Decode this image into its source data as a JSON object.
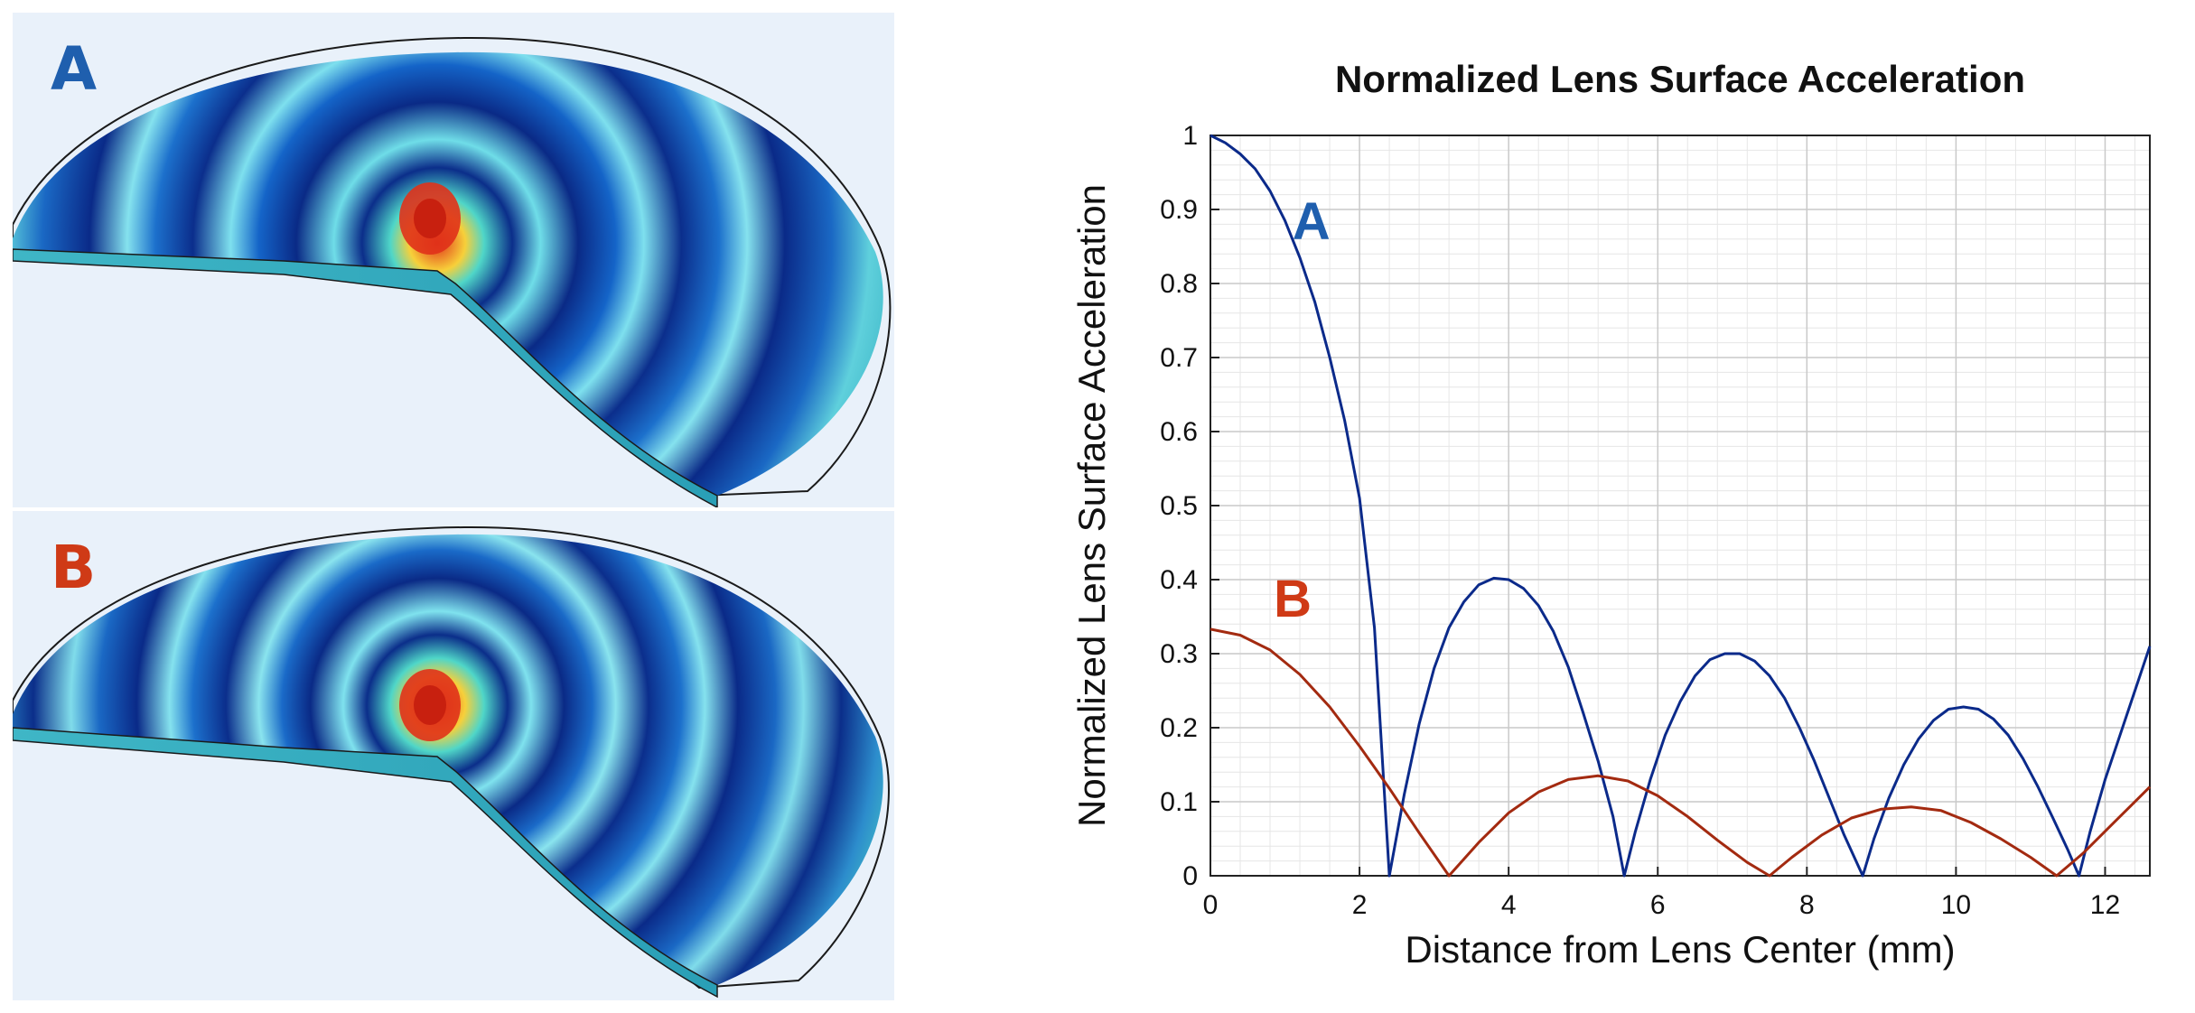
{
  "figure": {
    "panels": [
      {
        "label": "A",
        "label_color": "#1f5fae"
      },
      {
        "label": "B",
        "label_color": "#cf3a16"
      }
    ]
  },
  "chart_data": {
    "type": "line",
    "title": "Normalized Lens Surface Acceleration",
    "xlabel": "Distance from Lens Center (mm)",
    "ylabel": "Normalized Lens Surface Acceleration",
    "xlim": [
      0,
      12.6
    ],
    "ylim": [
      0,
      1
    ],
    "xticks": [
      0,
      2,
      4,
      6,
      8,
      10,
      12
    ],
    "yticks": [
      0,
      0.1,
      0.2,
      0.3,
      0.4,
      0.5,
      0.6,
      0.7,
      0.8,
      0.9,
      1
    ],
    "grid": true,
    "series": [
      {
        "name": "A",
        "color": "#0b2a8a",
        "label_color": "#1f5fae",
        "points": [
          [
            0,
            1.0
          ],
          [
            0.2,
            0.99
          ],
          [
            0.4,
            0.975
          ],
          [
            0.6,
            0.955
          ],
          [
            0.8,
            0.925
          ],
          [
            1.0,
            0.885
          ],
          [
            1.2,
            0.835
          ],
          [
            1.4,
            0.775
          ],
          [
            1.6,
            0.7
          ],
          [
            1.8,
            0.615
          ],
          [
            2.0,
            0.51
          ],
          [
            2.2,
            0.335
          ],
          [
            2.4,
            0.0
          ],
          [
            2.6,
            0.11
          ],
          [
            2.8,
            0.205
          ],
          [
            3.0,
            0.28
          ],
          [
            3.2,
            0.335
          ],
          [
            3.4,
            0.37
          ],
          [
            3.6,
            0.393
          ],
          [
            3.8,
            0.402
          ],
          [
            4.0,
            0.4
          ],
          [
            4.2,
            0.388
          ],
          [
            4.4,
            0.365
          ],
          [
            4.6,
            0.33
          ],
          [
            4.8,
            0.282
          ],
          [
            5.0,
            0.22
          ],
          [
            5.2,
            0.155
          ],
          [
            5.4,
            0.08
          ],
          [
            5.55,
            0.0
          ],
          [
            5.7,
            0.06
          ],
          [
            5.9,
            0.13
          ],
          [
            6.1,
            0.19
          ],
          [
            6.3,
            0.235
          ],
          [
            6.5,
            0.27
          ],
          [
            6.7,
            0.292
          ],
          [
            6.9,
            0.3
          ],
          [
            7.1,
            0.3
          ],
          [
            7.3,
            0.29
          ],
          [
            7.5,
            0.27
          ],
          [
            7.7,
            0.24
          ],
          [
            7.9,
            0.2
          ],
          [
            8.1,
            0.155
          ],
          [
            8.3,
            0.105
          ],
          [
            8.5,
            0.055
          ],
          [
            8.75,
            0.0
          ],
          [
            8.9,
            0.05
          ],
          [
            9.1,
            0.105
          ],
          [
            9.3,
            0.15
          ],
          [
            9.5,
            0.185
          ],
          [
            9.7,
            0.21
          ],
          [
            9.9,
            0.225
          ],
          [
            10.1,
            0.228
          ],
          [
            10.3,
            0.225
          ],
          [
            10.5,
            0.212
          ],
          [
            10.7,
            0.19
          ],
          [
            10.9,
            0.158
          ],
          [
            11.1,
            0.12
          ],
          [
            11.3,
            0.078
          ],
          [
            11.5,
            0.035
          ],
          [
            11.65,
            0.0
          ],
          [
            11.8,
            0.06
          ],
          [
            12.0,
            0.13
          ],
          [
            12.2,
            0.19
          ],
          [
            12.4,
            0.25
          ],
          [
            12.6,
            0.31
          ]
        ]
      },
      {
        "name": "B",
        "color": "#a32a10",
        "label_color": "#cf3a16",
        "points": [
          [
            0,
            0.333
          ],
          [
            0.4,
            0.325
          ],
          [
            0.8,
            0.305
          ],
          [
            1.2,
            0.272
          ],
          [
            1.6,
            0.228
          ],
          [
            2.0,
            0.175
          ],
          [
            2.4,
            0.118
          ],
          [
            2.8,
            0.058
          ],
          [
            3.2,
            0.0
          ],
          [
            3.6,
            0.045
          ],
          [
            4.0,
            0.085
          ],
          [
            4.4,
            0.113
          ],
          [
            4.8,
            0.13
          ],
          [
            5.2,
            0.135
          ],
          [
            5.6,
            0.128
          ],
          [
            6.0,
            0.108
          ],
          [
            6.4,
            0.08
          ],
          [
            6.8,
            0.048
          ],
          [
            7.2,
            0.018
          ],
          [
            7.5,
            0.0
          ],
          [
            7.8,
            0.025
          ],
          [
            8.2,
            0.055
          ],
          [
            8.6,
            0.078
          ],
          [
            9.0,
            0.09
          ],
          [
            9.4,
            0.093
          ],
          [
            9.8,
            0.088
          ],
          [
            10.2,
            0.072
          ],
          [
            10.6,
            0.05
          ],
          [
            11.0,
            0.025
          ],
          [
            11.35,
            0.0
          ],
          [
            11.7,
            0.03
          ],
          [
            12.1,
            0.07
          ],
          [
            12.6,
            0.12
          ]
        ]
      }
    ]
  }
}
